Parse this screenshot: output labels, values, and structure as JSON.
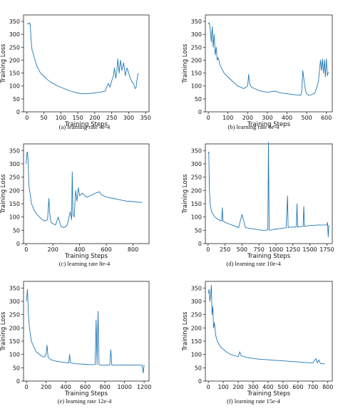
{
  "chart_data": [
    {
      "type": "line",
      "caption": "(a) learning rate 4e-4",
      "xlabel": "Training Steps",
      "ylabel": "Training Loss",
      "xlim": [
        -10,
        360
      ],
      "ylim": [
        0,
        375
      ],
      "xticks": [
        0,
        50,
        100,
        150,
        200,
        250,
        300,
        350
      ],
      "yticks": [
        0,
        50,
        100,
        150,
        200,
        250,
        300,
        350
      ],
      "color": "#1f77b4",
      "x": [
        0,
        5,
        8,
        10,
        12,
        15,
        20,
        25,
        30,
        40,
        50,
        60,
        70,
        80,
        90,
        100,
        110,
        120,
        130,
        140,
        150,
        160,
        170,
        180,
        190,
        200,
        210,
        220,
        230,
        240,
        245,
        250,
        255,
        258,
        262,
        265,
        268,
        272,
        276,
        280,
        285,
        290,
        295,
        300,
        305,
        310,
        315,
        318,
        320,
        322,
        325,
        328
      ],
      "y": [
        342,
        340,
        344,
        336,
        280,
        240,
        220,
        195,
        175,
        150,
        138,
        125,
        115,
        108,
        100,
        95,
        90,
        84,
        80,
        76,
        73,
        70,
        71,
        70,
        72,
        73,
        75,
        77,
        80,
        110,
        95,
        120,
        140,
        170,
        130,
        155,
        205,
        150,
        200,
        160,
        190,
        140,
        170,
        150,
        130,
        115,
        108,
        92,
        90,
        95,
        130,
        150
      ]
    },
    {
      "type": "line",
      "caption": "(b) learning rate 6e-4",
      "xlabel": "Training Steps",
      "ylabel": "Training Loss",
      "xlim": [
        -15,
        630
      ],
      "ylim": [
        0,
        375
      ],
      "xticks": [
        0,
        100,
        200,
        300,
        400,
        500,
        600
      ],
      "yticks": [
        0,
        50,
        100,
        150,
        200,
        250,
        300,
        350
      ],
      "color": "#1f77b4",
      "x": [
        0,
        5,
        10,
        15,
        20,
        25,
        30,
        35,
        40,
        45,
        50,
        60,
        70,
        80,
        100,
        120,
        150,
        180,
        200,
        205,
        210,
        215,
        220,
        240,
        260,
        280,
        300,
        320,
        340,
        360,
        380,
        400,
        420,
        440,
        460,
        470,
        475,
        480,
        485,
        490,
        495,
        500,
        510,
        520,
        540,
        550,
        560,
        570,
        575,
        580,
        585,
        590,
        595,
        600,
        605,
        610
      ],
      "y": [
        340,
        345,
        320,
        270,
        330,
        250,
        300,
        220,
        250,
        200,
        210,
        180,
        165,
        150,
        135,
        120,
        100,
        90,
        100,
        145,
        110,
        100,
        95,
        88,
        82,
        78,
        76,
        78,
        80,
        75,
        72,
        70,
        68,
        66,
        65,
        64,
        80,
        160,
        130,
        100,
        80,
        70,
        64,
        65,
        72,
        90,
        120,
        200,
        160,
        205,
        150,
        200,
        135,
        205,
        140,
        155
      ]
    },
    {
      "type": "line",
      "caption": "(c) learning rate 8e-4",
      "xlabel": "Training Steps",
      "ylabel": "Training Loss",
      "xlim": [
        -20,
        920
      ],
      "ylim": [
        0,
        375
      ],
      "xticks": [
        0,
        200,
        400,
        600,
        800
      ],
      "yticks": [
        0,
        50,
        100,
        150,
        200,
        250,
        300,
        350
      ],
      "color": "#1f77b4",
      "x": [
        0,
        5,
        10,
        15,
        20,
        30,
        40,
        60,
        80,
        100,
        120,
        140,
        160,
        170,
        175,
        185,
        200,
        220,
        240,
        260,
        280,
        300,
        310,
        320,
        330,
        340,
        345,
        350,
        360,
        370,
        380,
        390,
        400,
        420,
        450,
        480,
        500,
        520,
        550,
        560,
        580,
        600,
        650,
        700,
        750,
        800,
        850,
        870
      ],
      "y": [
        300,
        340,
        345,
        300,
        220,
        185,
        150,
        125,
        110,
        100,
        90,
        85,
        90,
        170,
        120,
        80,
        75,
        70,
        100,
        65,
        60,
        65,
        75,
        100,
        120,
        90,
        270,
        110,
        100,
        200,
        160,
        210,
        180,
        190,
        175,
        180,
        185,
        190,
        195,
        185,
        180,
        175,
        170,
        165,
        160,
        158,
        155,
        155
      ]
    },
    {
      "type": "line",
      "caption": "(d) learning rate 10e-4",
      "xlabel": "Training Steps",
      "ylabel": "Training Loss",
      "xlim": [
        -40,
        1830
      ],
      "ylim": [
        0,
        375
      ],
      "xticks": [
        0,
        250,
        500,
        750,
        1000,
        1250,
        1500,
        1750
      ],
      "yticks": [
        0,
        50,
        100,
        150,
        200,
        250,
        300,
        350
      ],
      "color": "#1f77b4",
      "x": [
        0,
        10,
        20,
        30,
        50,
        100,
        150,
        200,
        210,
        220,
        250,
        300,
        350,
        400,
        450,
        500,
        550,
        600,
        650,
        700,
        750,
        800,
        850,
        880,
        890,
        900,
        910,
        950,
        1000,
        1050,
        1100,
        1150,
        1170,
        1180,
        1200,
        1250,
        1300,
        1310,
        1320,
        1350,
        1400,
        1410,
        1420,
        1450,
        1500,
        1550,
        1600,
        1650,
        1700,
        1750,
        1760,
        1770,
        1780
      ],
      "y": [
        340,
        345,
        200,
        150,
        120,
        100,
        90,
        85,
        135,
        85,
        80,
        75,
        70,
        65,
        60,
        110,
        60,
        58,
        56,
        54,
        52,
        50,
        50,
        52,
        380,
        52,
        50,
        52,
        55,
        56,
        58,
        60,
        180,
        60,
        62,
        62,
        63,
        150,
        62,
        64,
        65,
        140,
        65,
        66,
        68,
        68,
        70,
        70,
        70,
        70,
        80,
        25,
        70
      ]
    },
    {
      "type": "line",
      "caption": "(e) learning rate 12e-4",
      "xlabel": "Training Steps",
      "ylabel": "Training Loss",
      "xlim": [
        -30,
        1250
      ],
      "ylim": [
        0,
        375
      ],
      "xticks": [
        0,
        200,
        400,
        600,
        800,
        1000,
        1200
      ],
      "yticks": [
        0,
        50,
        100,
        150,
        200,
        250,
        300,
        350
      ],
      "color": "#1f77b4",
      "x": [
        0,
        10,
        20,
        30,
        50,
        80,
        100,
        150,
        180,
        200,
        210,
        220,
        250,
        300,
        350,
        400,
        430,
        440,
        450,
        500,
        550,
        600,
        650,
        700,
        710,
        720,
        730,
        740,
        750,
        760,
        800,
        850,
        860,
        870,
        900,
        950,
        1000,
        1050,
        1100,
        1150,
        1180,
        1190,
        1200
      ],
      "y": [
        300,
        345,
        250,
        200,
        150,
        125,
        110,
        95,
        90,
        100,
        135,
        90,
        80,
        75,
        72,
        70,
        68,
        100,
        68,
        65,
        64,
        63,
        62,
        62,
        230,
        62,
        262,
        62,
        61,
        60,
        60,
        60,
        118,
        60,
        60,
        60,
        60,
        60,
        60,
        60,
        60,
        30,
        60
      ]
    },
    {
      "type": "line",
      "caption": "(f) learning rate 15e-4",
      "xlabel": "Training Steps",
      "ylabel": "Training Loss",
      "xlim": [
        -20,
        830
      ],
      "ylim": [
        0,
        375
      ],
      "xticks": [
        0,
        100,
        200,
        300,
        400,
        500,
        600,
        700,
        800
      ],
      "yticks": [
        0,
        50,
        100,
        150,
        200,
        250,
        300,
        350
      ],
      "color": "#1f77b4",
      "x": [
        0,
        5,
        10,
        15,
        20,
        25,
        30,
        35,
        40,
        50,
        60,
        80,
        100,
        120,
        150,
        180,
        200,
        210,
        220,
        250,
        300,
        350,
        400,
        450,
        500,
        550,
        600,
        650,
        700,
        720,
        730,
        740,
        750,
        760,
        780
      ],
      "y": [
        330,
        345,
        300,
        320,
        360,
        250,
        280,
        200,
        220,
        170,
        150,
        130,
        120,
        110,
        100,
        95,
        92,
        110,
        95,
        90,
        85,
        82,
        80,
        78,
        76,
        74,
        72,
        70,
        68,
        85,
        68,
        80,
        66,
        65,
        65
      ]
    }
  ]
}
